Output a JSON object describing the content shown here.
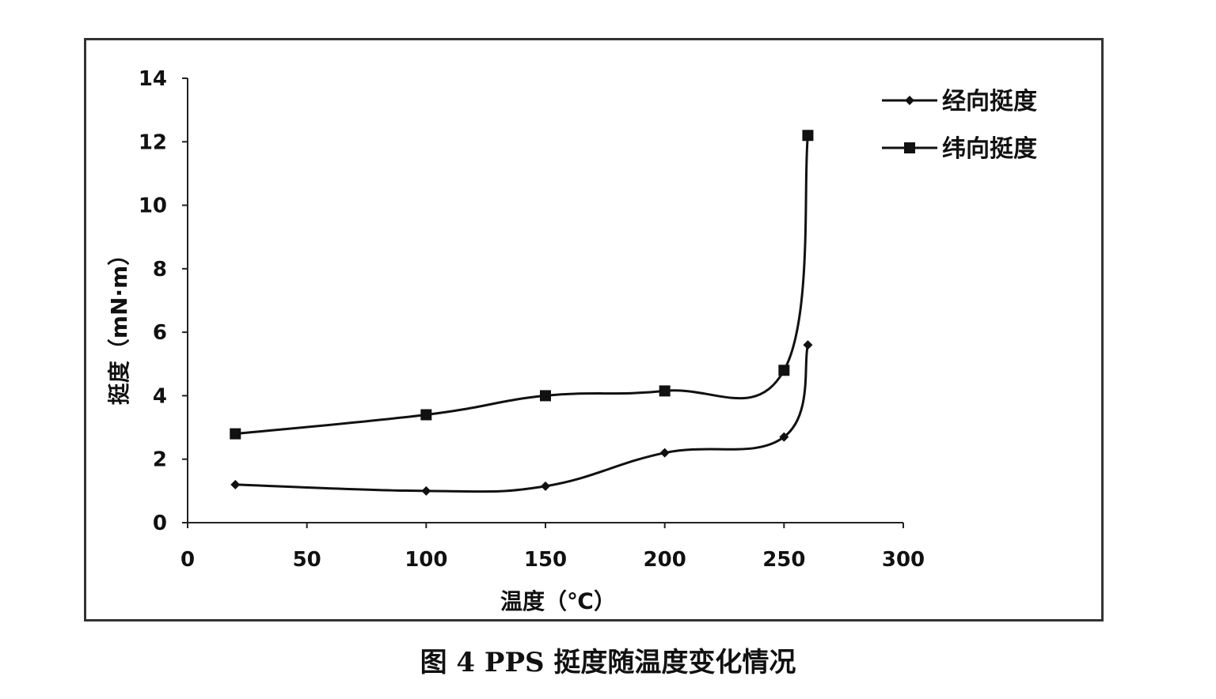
{
  "caption": "图 4    PPS 挺度随温度变化情况",
  "chart_data": {
    "type": "line",
    "xlabel": "温度（℃）",
    "ylabel": "挺度（mN·m）",
    "xlim": [
      0,
      300
    ],
    "ylim": [
      0,
      14
    ],
    "xticks": [
      0,
      50,
      100,
      150,
      200,
      250,
      300
    ],
    "yticks": [
      0,
      2,
      4,
      6,
      8,
      10,
      12,
      14
    ],
    "grid": false,
    "legend_position": "top-right",
    "series": [
      {
        "name": "经向挺度",
        "marker": "diamond",
        "color": "#111111",
        "x": [
          20,
          100,
          150,
          200,
          250,
          260
        ],
        "y": [
          1.2,
          1.0,
          1.15,
          2.2,
          2.7,
          5.6
        ]
      },
      {
        "name": "纬向挺度",
        "marker": "square",
        "color": "#111111",
        "x": [
          20,
          100,
          150,
          200,
          250,
          260
        ],
        "y": [
          2.8,
          3.4,
          4.0,
          4.15,
          4.8,
          12.2
        ]
      }
    ]
  }
}
